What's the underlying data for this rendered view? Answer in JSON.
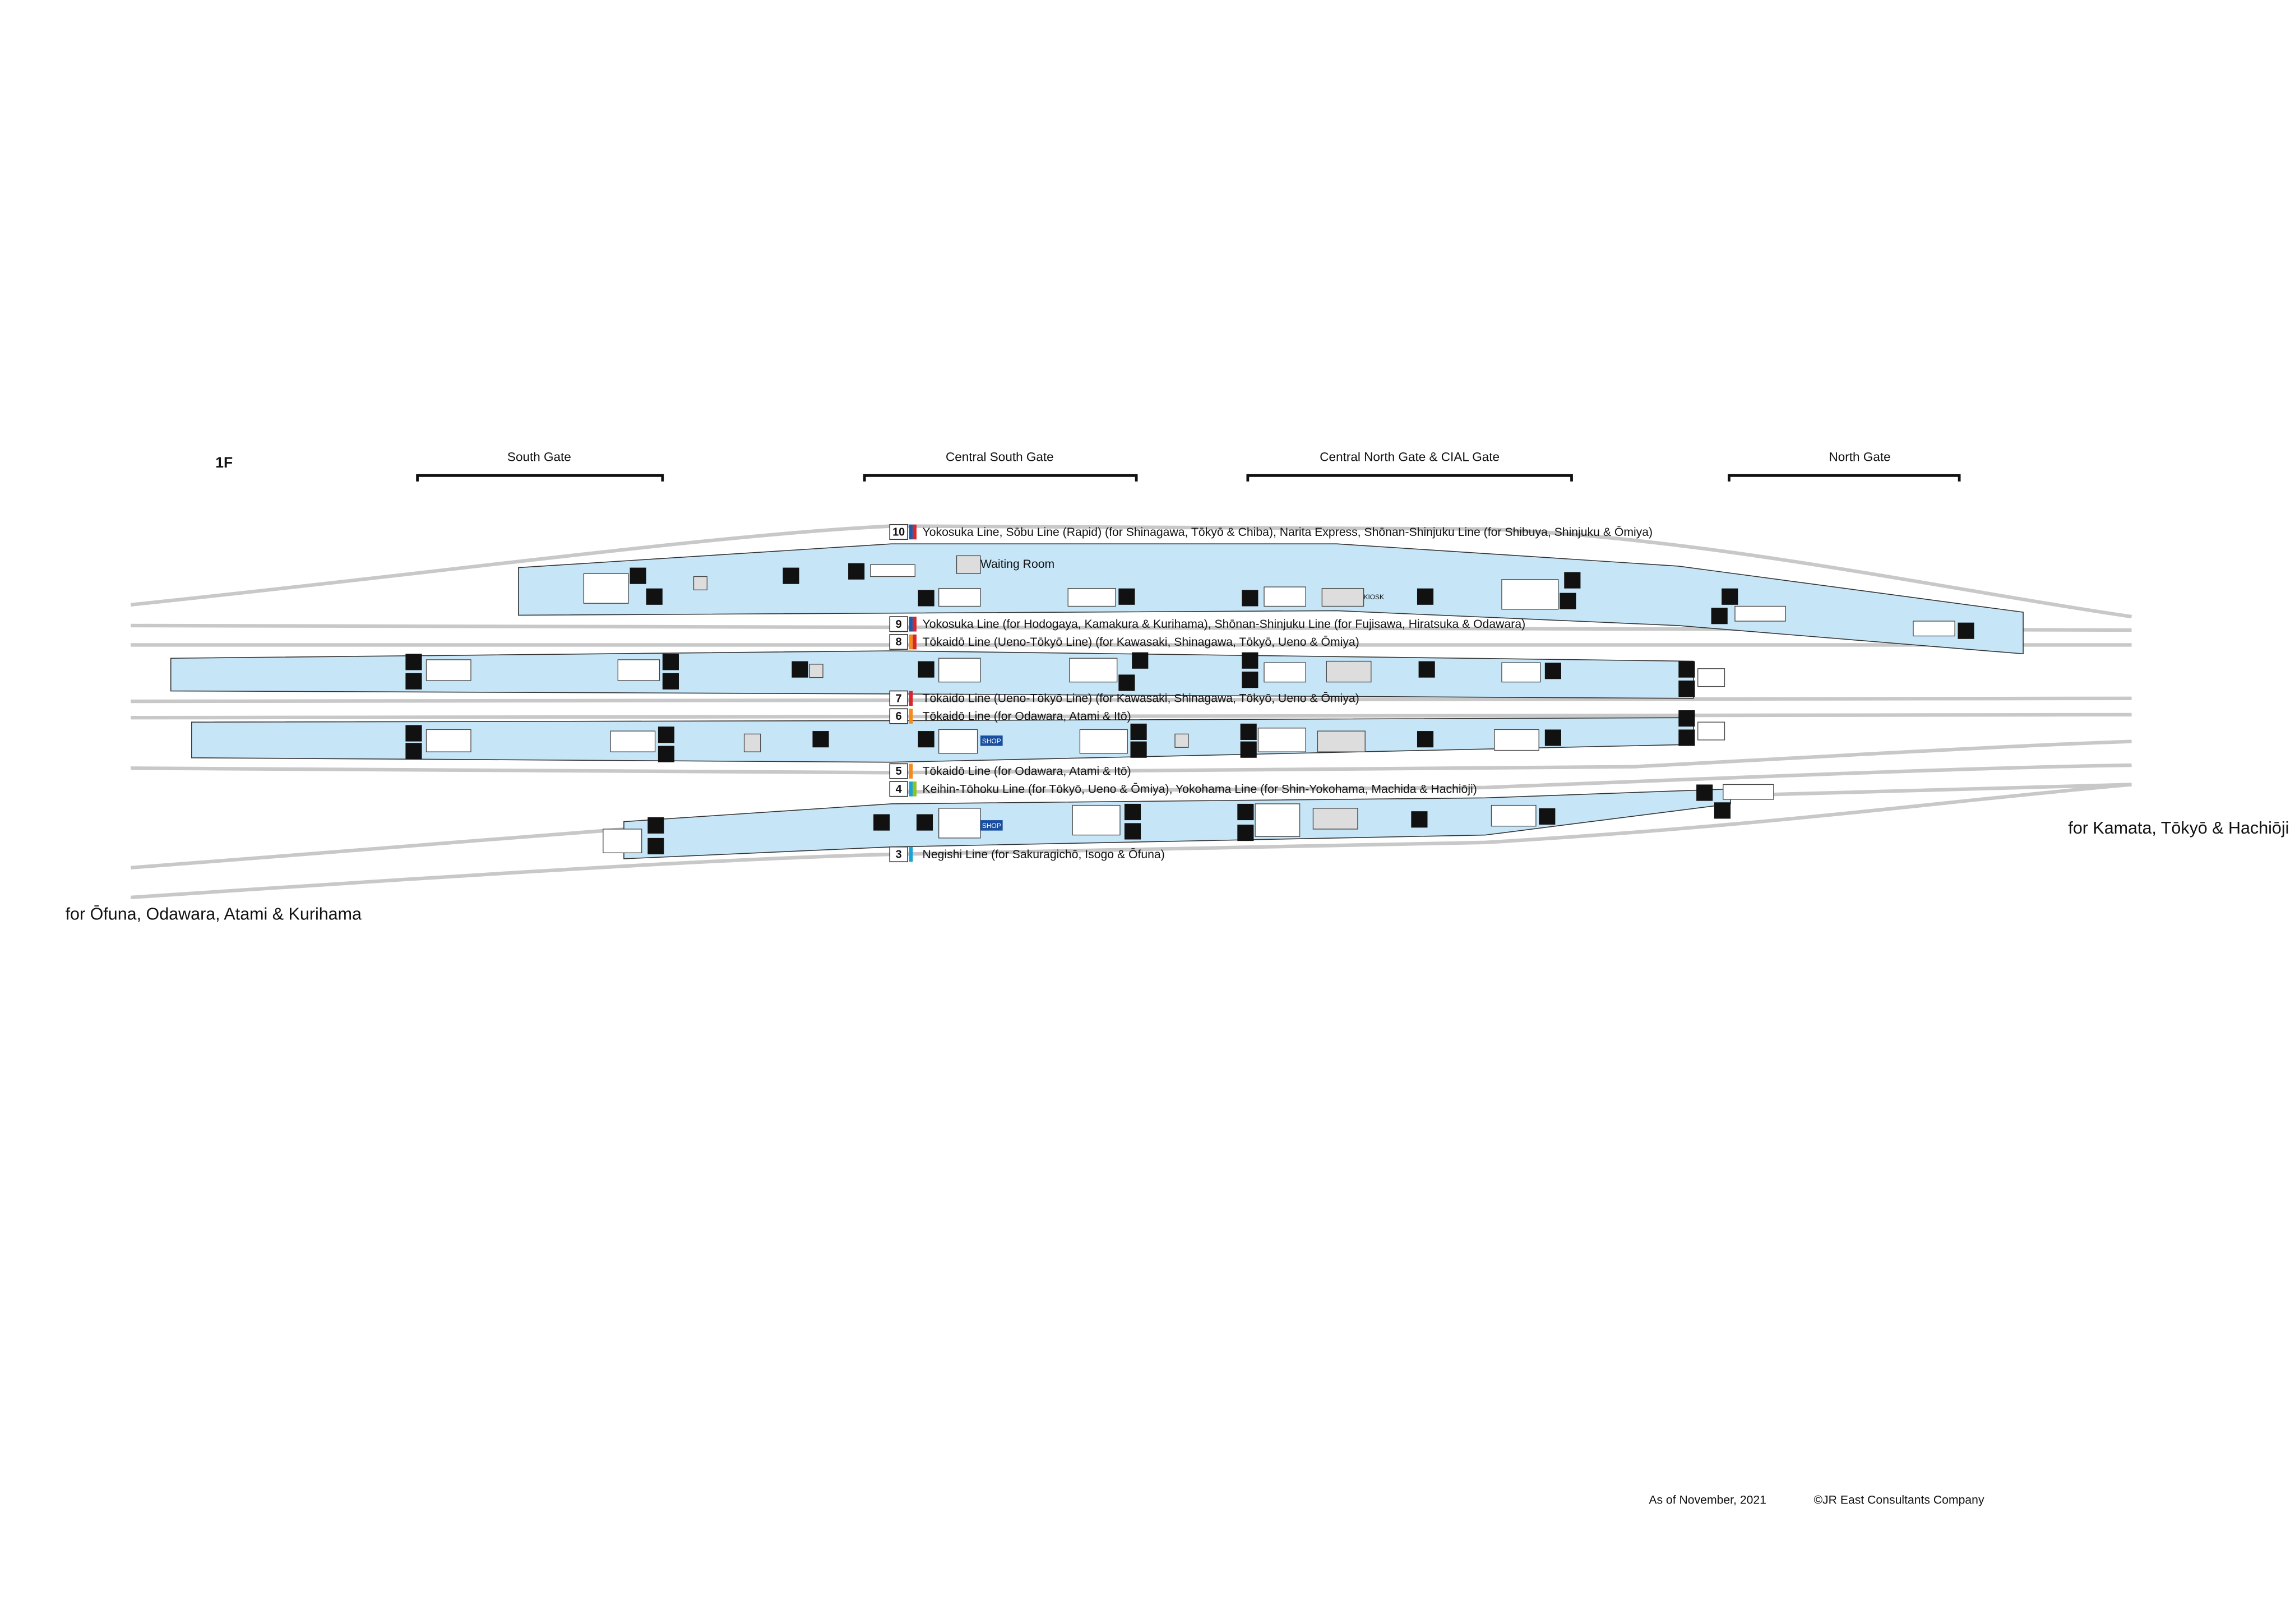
{
  "floor": "1F",
  "gates": [
    "South Gate",
    "Central South Gate",
    "Central North Gate & CIAL Gate",
    "North Gate"
  ],
  "tracks": [
    {
      "number": "10",
      "label": "Yokosuka Line, Sōbu Line (Rapid) (for Shinagawa, Tōkyō & Chiba), Narita Express, Shōnan-Shinjuku Line (for Shibuya, Shinjuku & Ōmiya)"
    },
    {
      "number": "9",
      "label": "Yokosuka Line (for Hodogaya, Kamakura & Kurihama), Shōnan-Shinjuku Line (for Fujisawa, Hiratsuka & Odawara)"
    },
    {
      "number": "8",
      "label": "Tōkaidō Line (Ueno-Tōkyō Line) (for Kawasaki, Shinagawa, Tōkyō, Ueno & Ōmiya)"
    },
    {
      "number": "7",
      "label": "Tōkaidō Line (Ueno-Tōkyō Line) (for Kawasaki, Shinagawa, Tōkyō, Ueno & Ōmiya)"
    },
    {
      "number": "6",
      "label": "Tōkaidō Line (for Odawara, Atami & Itō)"
    },
    {
      "number": "5",
      "label": "Tōkaidō Line (for Odawara, Atami & Itō)"
    },
    {
      "number": "4",
      "label": "Keihin-Tōhoku Line (for Tōkyō, Ueno & Ōmiya), Yokohama Line (for Shin-Yokohama, Machida & Hachiōji)"
    },
    {
      "number": "3",
      "label": "Negishi Line (for Sakuragichō, Isogo & Ōfuna)"
    }
  ],
  "facilities": {
    "waiting_room": "Waiting Room",
    "kiosk": "KIOSK",
    "shops": [
      "SHOP",
      "SHOP"
    ]
  },
  "directions": {
    "east": "for Kamata, Tōkyō & Hachiōji",
    "west": "for Ōfuna, Odawara, Atami & Kurihama"
  },
  "footer": {
    "date": "As of November, 2021",
    "copyright": "©JR East Consultants Company"
  }
}
